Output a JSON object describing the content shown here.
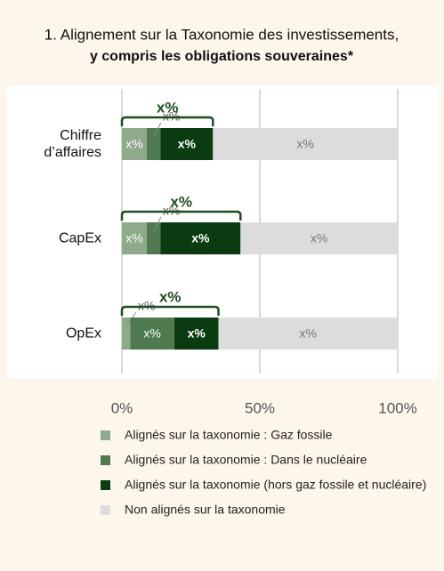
{
  "chart_data": {
    "type": "stacked-bar",
    "orientation": "horizontal",
    "title": "1. Alignement sur la Taxonomie des investissements,",
    "subtitle": "y compris les obligations souveraines*",
    "categories": [
      "Chiffre d’affaires",
      "CapEx",
      "OpEx"
    ],
    "series": [
      {
        "name": "Alignés sur la taxonomie : Gaz fossile",
        "color": "#8fa98b",
        "values": [
          9,
          9,
          3
        ],
        "value_labels": [
          "x%",
          "x%",
          "x%"
        ]
      },
      {
        "name": "Alignés sur la taxonomie : Dans le nucléaire",
        "color": "#4f7a4f",
        "values": [
          5,
          5,
          16
        ],
        "value_labels": [
          "x%",
          "x%",
          "x%"
        ]
      },
      {
        "name": "Alignés sur la taxonomie (hors gaz fossile et nucléaire)",
        "color": "#0b3b10",
        "values": [
          19,
          29,
          16
        ],
        "value_labels": [
          "x%",
          "x%",
          "x%"
        ]
      },
      {
        "name": "Non alignés sur la taxonomie",
        "color": "#dcdcdc",
        "values": [
          67,
          57,
          65
        ],
        "value_labels": [
          "x%",
          "x%",
          "x%"
        ]
      }
    ],
    "bracket_labels": [
      "x%",
      "x%",
      "x%"
    ],
    "xlim": [
      0,
      100
    ],
    "xticks": [
      {
        "value": 0,
        "label": "0%"
      },
      {
        "value": 50,
        "label": "50%"
      },
      {
        "value": 100,
        "label": "100%"
      }
    ],
    "grid": true
  }
}
